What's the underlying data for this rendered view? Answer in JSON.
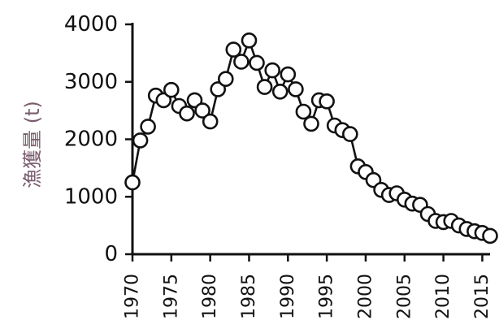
{
  "chart_data": {
    "type": "line",
    "title": "",
    "xlabel": "",
    "ylabel": "漁獲量 (t)",
    "ylim": [
      0,
      4000
    ],
    "xlim": [
      1970,
      2016
    ],
    "yticks": [
      0,
      1000,
      2000,
      3000,
      4000
    ],
    "xticks": [
      1970,
      1975,
      1980,
      1985,
      1990,
      1995,
      2000,
      2005,
      2010,
      2015
    ],
    "grid": false,
    "marker": "open-circle",
    "series": [
      {
        "x": [
          1970,
          1971,
          1972,
          1973,
          1974,
          1975,
          1976,
          1977,
          1978,
          1979,
          1980,
          1981,
          1982,
          1983,
          1984,
          1985,
          1986,
          1987,
          1988,
          1989,
          1990,
          1991,
          1992,
          1993,
          1994,
          1995,
          1996,
          1997,
          1998,
          1999,
          2000,
          2001,
          2002,
          2003,
          2004,
          2005,
          2006,
          2007,
          2008,
          2009,
          2010,
          2011,
          2012,
          2013,
          2014,
          2015,
          2016
        ],
        "values": [
          1250,
          1980,
          2220,
          2760,
          2680,
          2860,
          2580,
          2450,
          2680,
          2500,
          2310,
          2870,
          3050,
          3560,
          3350,
          3720,
          3330,
          2910,
          3200,
          2830,
          3130,
          2870,
          2480,
          2270,
          2680,
          2660,
          2240,
          2160,
          2090,
          1530,
          1430,
          1290,
          1120,
          1030,
          1060,
          950,
          880,
          860,
          700,
          580,
          560,
          580,
          500,
          440,
          400,
          370,
          320
        ]
      }
    ]
  }
}
